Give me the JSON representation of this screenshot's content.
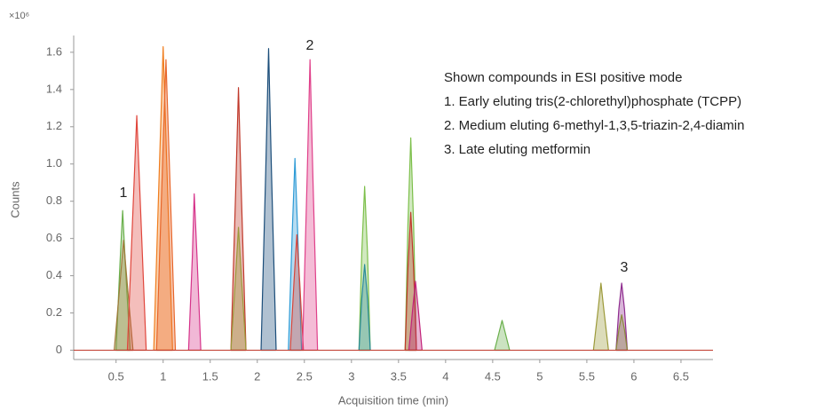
{
  "chart_data": {
    "type": "area",
    "y_multiplier": "×10⁶",
    "ylabel": "Counts",
    "xlabel": "Acquisition time (min)",
    "xlim": [
      0.05,
      6.84
    ],
    "ylim": [
      -0.05,
      1.69
    ],
    "xticks": [
      0.5,
      1,
      1.5,
      2,
      2.5,
      3,
      3.5,
      4,
      4.5,
      5,
      5.5,
      6,
      6.5
    ],
    "yticks": [
      0,
      0.2,
      0.4,
      0.6,
      0.8,
      {
        "value": 1,
        "label": "1.0"
      },
      1.2,
      1.4,
      1.6
    ],
    "grid": false,
    "annotations": [
      "1",
      "2",
      "3"
    ],
    "notes": [
      "Shown compounds in ESI positive mode",
      "1. Early eluting tris(2-chlorethyl)phosphate (TCPP)",
      "2. Medium eluting 6-methyl-1,3,5-triazin-2,4-diamin",
      "3. Late eluting metformin"
    ],
    "series": [
      {
        "color": "#6ab04c",
        "x": [
          0.5,
          0.54,
          0.57,
          0.6,
          0.65
        ],
        "values": [
          0,
          0.45,
          0.75,
          0.45,
          0
        ]
      },
      {
        "color": "#a07a3a",
        "x": [
          0.48,
          0.54,
          0.58,
          0.62,
          0.68
        ],
        "values": [
          0,
          0.35,
          0.59,
          0.35,
          0
        ]
      },
      {
        "color": "#e0463c",
        "x": [
          0.62,
          0.68,
          0.72,
          0.76,
          0.82
        ],
        "values": [
          0,
          0.76,
          1.26,
          0.76,
          0
        ]
      },
      {
        "color": "#f07d1e",
        "x": [
          0.9,
          0.96,
          1.0,
          1.04,
          1.1
        ],
        "values": [
          0,
          0.98,
          1.63,
          0.98,
          0
        ]
      },
      {
        "color": "#e8662a",
        "x": [
          0.93,
          0.99,
          1.03,
          1.07,
          1.13
        ],
        "values": [
          0,
          0.94,
          1.56,
          0.94,
          0
        ]
      },
      {
        "color": "#d6338a",
        "x": [
          1.27,
          1.31,
          1.33,
          1.36,
          1.4
        ],
        "values": [
          0,
          0.5,
          0.84,
          0.5,
          0
        ]
      },
      {
        "color": "#c0392b",
        "x": [
          1.72,
          1.77,
          1.8,
          1.83,
          1.88
        ],
        "values": [
          0,
          0.85,
          1.41,
          0.85,
          0
        ]
      },
      {
        "color": "#9c9a3a",
        "x": [
          1.72,
          1.77,
          1.8,
          1.83,
          1.88
        ],
        "values": [
          0,
          0.4,
          0.66,
          0.4,
          0
        ]
      },
      {
        "color": "#1c4e7a",
        "x": [
          2.04,
          2.09,
          2.12,
          2.15,
          2.2
        ],
        "values": [
          0,
          0.97,
          1.62,
          0.97,
          0
        ]
      },
      {
        "color": "#2e9bd6",
        "x": [
          2.33,
          2.37,
          2.4,
          2.43,
          2.47
        ],
        "values": [
          0,
          0.62,
          1.03,
          0.62,
          0
        ]
      },
      {
        "color": "#d9453a",
        "x": [
          2.35,
          2.39,
          2.42,
          2.45,
          2.49
        ],
        "values": [
          0,
          0.37,
          0.62,
          0.37,
          0
        ]
      },
      {
        "color": "#e0408a",
        "x": [
          2.48,
          2.53,
          2.56,
          2.59,
          2.64
        ],
        "values": [
          0,
          0.94,
          1.56,
          0.94,
          0
        ]
      },
      {
        "color": "#7cbf4a",
        "x": [
          3.08,
          3.11,
          3.14,
          3.17,
          3.2
        ],
        "values": [
          0,
          0.53,
          0.88,
          0.53,
          0
        ]
      },
      {
        "color": "#2a8a9a",
        "x": [
          3.08,
          3.11,
          3.14,
          3.17,
          3.2
        ],
        "values": [
          0,
          0.28,
          0.46,
          0.28,
          0
        ]
      },
      {
        "color": "#7cbf4a",
        "x": [
          3.57,
          3.6,
          3.63,
          3.66,
          3.69
        ],
        "values": [
          0,
          0.68,
          1.14,
          0.68,
          0
        ]
      },
      {
        "color": "#c0392b",
        "x": [
          3.57,
          3.6,
          3.63,
          3.66,
          3.69
        ],
        "values": [
          0,
          0.44,
          0.74,
          0.44,
          0
        ]
      },
      {
        "color": "#c2237a",
        "x": [
          3.61,
          3.65,
          3.68,
          3.71,
          3.75
        ],
        "values": [
          0,
          0.22,
          0.37,
          0.22,
          0
        ]
      },
      {
        "color": "#6ab04c",
        "x": [
          4.52,
          4.57,
          4.6,
          4.63,
          4.68
        ],
        "values": [
          0,
          0.1,
          0.16,
          0.1,
          0
        ]
      },
      {
        "color": "#9c9a3a",
        "x": [
          5.57,
          5.62,
          5.65,
          5.68,
          5.73
        ],
        "values": [
          0,
          0.22,
          0.36,
          0.22,
          0
        ]
      },
      {
        "color": "#8e2b8e",
        "x": [
          5.81,
          5.84,
          5.87,
          5.9,
          5.93
        ],
        "values": [
          0,
          0.22,
          0.36,
          0.22,
          0
        ]
      },
      {
        "color": "#8a8a3a",
        "x": [
          5.81,
          5.84,
          5.87,
          5.9,
          5.93
        ],
        "values": [
          0,
          0.11,
          0.19,
          0.11,
          0
        ]
      }
    ]
  }
}
